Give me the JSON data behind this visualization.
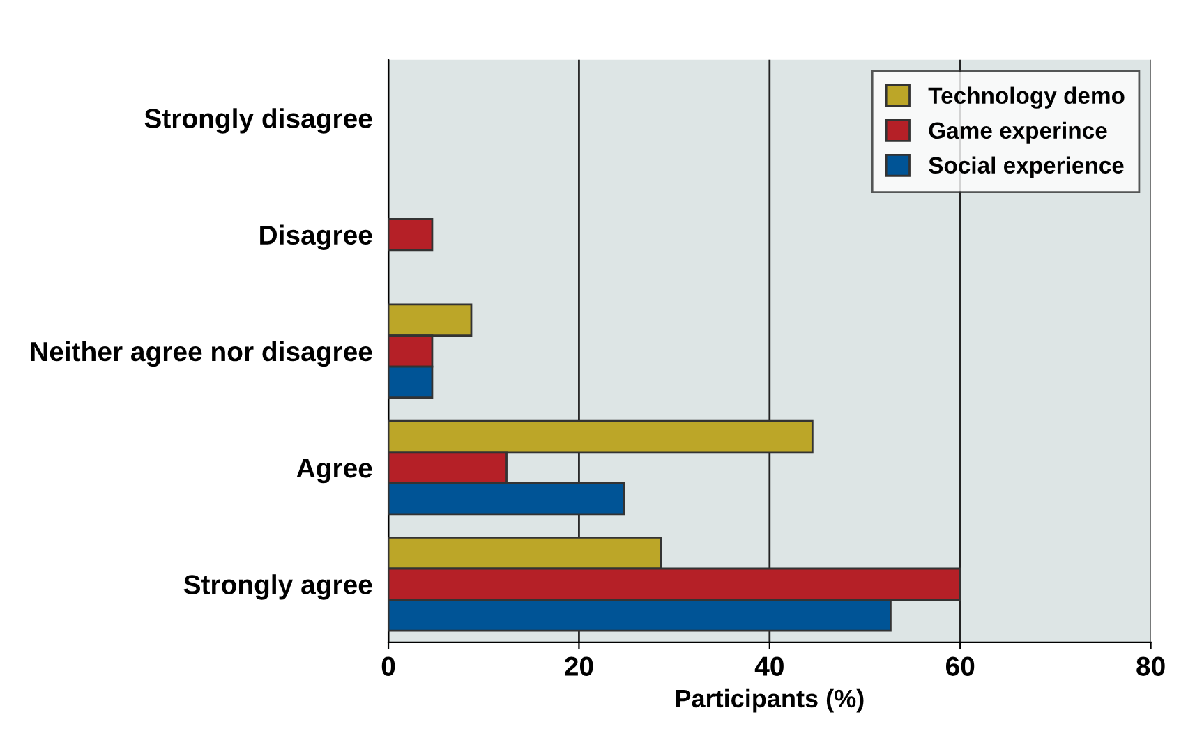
{
  "chart_data": {
    "type": "bar",
    "orientation": "horizontal",
    "xlabel": "Participants (%)",
    "categories": [
      "Strongly disagree",
      "Disagree",
      "Neither agree nor disagree",
      "Agree",
      "Strongly agree"
    ],
    "series": [
      {
        "name": "Technology demo",
        "color": "#bca628",
        "values": [
          null,
          null,
          8.7,
          44.5,
          28.6
        ]
      },
      {
        "name": "Game experince",
        "color": "#b52027",
        "values": [
          null,
          4.6,
          4.6,
          12.4,
          60
        ]
      },
      {
        "name": "Social experience",
        "color": "#005496",
        "values": [
          null,
          null,
          4.6,
          24.7,
          52.7
        ]
      }
    ],
    "xlim": [
      0,
      80
    ],
    "xticks": [
      0,
      20,
      40,
      60,
      80
    ],
    "grid": "x",
    "legend": "top right"
  }
}
